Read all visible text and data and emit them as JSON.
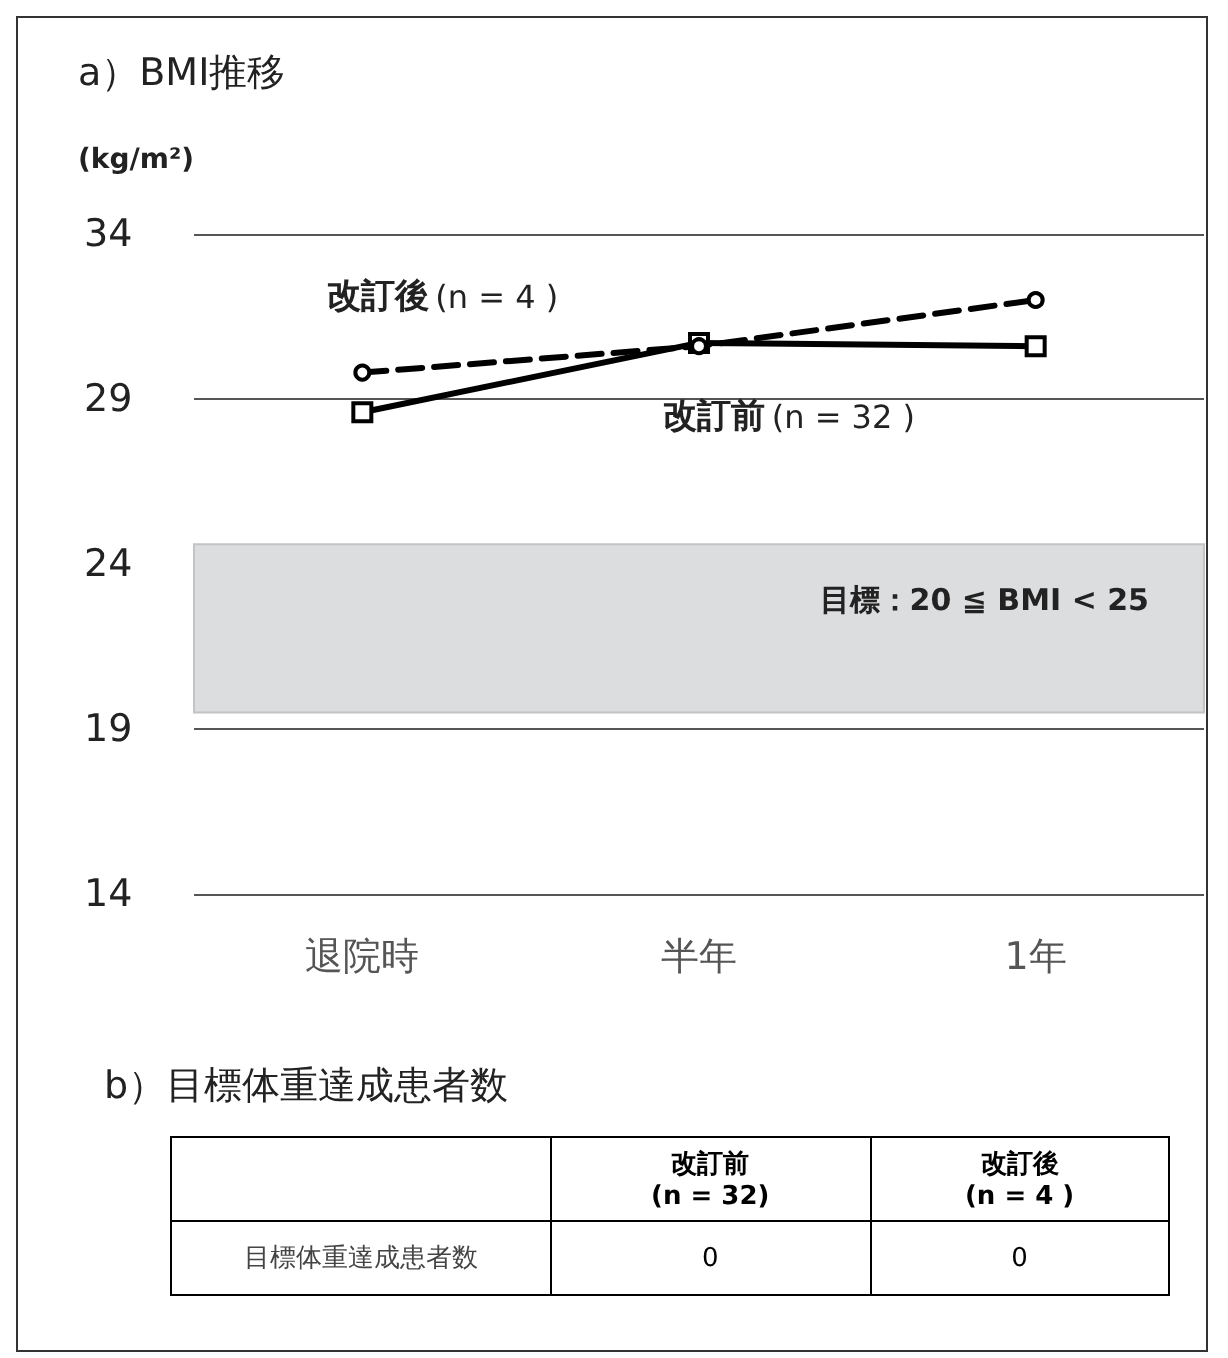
{
  "chart_data": [
    {
      "type": "line",
      "title": "a）BMI推移",
      "ylabel": "(kg/m²)",
      "categories": [
        "退院時",
        "半年",
        "1年"
      ],
      "series": [
        {
          "name": "改訂後 (n = 4 )",
          "color": "#000000",
          "values": [
            29.8,
            30.6,
            32.0
          ],
          "marker": "circle",
          "line_style": "dashed"
        },
        {
          "name": "改訂前 (n = 32 )",
          "color": "#000000",
          "values": [
            28.6,
            30.7,
            30.6
          ],
          "marker": "square",
          "line_style": "solid"
        }
      ],
      "ylim": [
        14,
        34
      ],
      "yticks": [
        14,
        19,
        24,
        29,
        34
      ],
      "grid": "y",
      "legend": false,
      "bands": [
        {
          "axis": "y",
          "from": 19.5,
          "to": 24.6,
          "label": "目標：20 ≦ BMI < 25",
          "color": "#dcdddf"
        }
      ]
    },
    {
      "type": "other",
      "title": "b）目標体重達成患者数",
      "categories": [
        "改訂前\n(n = 32)",
        "改訂後\n(n = 4 )"
      ],
      "ylabel": "目標体重達成患者数",
      "values": [
        0,
        0
      ],
      "data_labels": true
    }
  ]
}
